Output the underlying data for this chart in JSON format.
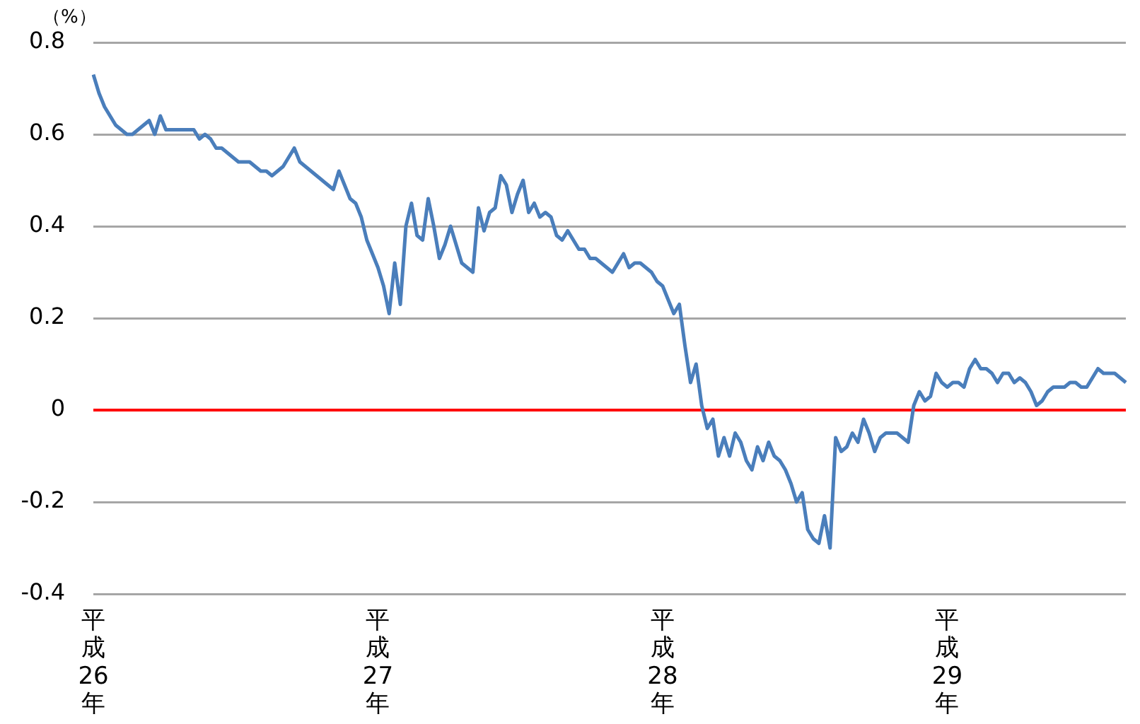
{
  "chart_data": {
    "type": "line",
    "ylabel": "（%）",
    "categories": [
      "平成26年",
      null,
      null,
      null,
      null,
      null,
      null,
      null,
      null,
      null,
      null,
      null,
      null,
      null,
      null,
      null,
      null,
      null,
      null,
      null,
      null,
      null,
      null,
      null,
      null,
      null,
      null,
      null,
      null,
      null,
      null,
      null,
      null,
      null,
      null,
      null,
      null,
      null,
      null,
      null,
      null,
      null,
      null,
      null,
      null,
      null,
      null,
      null,
      null,
      null,
      null,
      "平成27年",
      null,
      null,
      null,
      null,
      null,
      null,
      null,
      null,
      null,
      null,
      null,
      null,
      null,
      null,
      null,
      null,
      null,
      null,
      null,
      null,
      null,
      null,
      null,
      null,
      null,
      null,
      null,
      null,
      null,
      null,
      null,
      null,
      null,
      null,
      null,
      null,
      null,
      null,
      null,
      null,
      null,
      null,
      null,
      null,
      null,
      null,
      null,
      null,
      null,
      null,
      "平成28年",
      null,
      null,
      null,
      null,
      null,
      null,
      null,
      null,
      null,
      null,
      null,
      null,
      null,
      null,
      null,
      null,
      null,
      null,
      null,
      null,
      null,
      null,
      null,
      null,
      null,
      null,
      null,
      null,
      null,
      null,
      null,
      null,
      null,
      null,
      null,
      null,
      null,
      null,
      null,
      null,
      null,
      null,
      null,
      null,
      null,
      null,
      null,
      null,
      null,
      null,
      "平成29年",
      null,
      null,
      null,
      null,
      null,
      null,
      null,
      null,
      null,
      null,
      null,
      null,
      null,
      null,
      null,
      null,
      null,
      null,
      null,
      null,
      null,
      null,
      null,
      null,
      null,
      null,
      null,
      null,
      null,
      null,
      null,
      null
    ],
    "ylim": [
      -0.4,
      0.8
    ],
    "yticks": [
      -0.4,
      -0.2,
      0,
      0.2,
      0.4,
      0.6,
      0.8
    ],
    "grid": "y",
    "marker": "none",
    "line_style": "solid",
    "legend": false,
    "ref_lines": [
      {
        "axis": "y",
        "value": 0,
        "color": "#ff0000"
      }
    ],
    "series": [
      {
        "color": "#4a7ebb",
        "values": [
          0.73,
          0.69,
          0.66,
          0.64,
          0.62,
          0.61,
          0.6,
          0.6,
          0.61,
          0.62,
          0.63,
          0.6,
          0.64,
          0.61,
          0.61,
          0.61,
          0.61,
          0.61,
          0.61,
          0.59,
          0.6,
          0.59,
          0.57,
          0.57,
          0.56,
          0.55,
          0.54,
          0.54,
          0.54,
          0.53,
          0.52,
          0.52,
          0.51,
          0.52,
          0.53,
          0.55,
          0.57,
          0.54,
          0.53,
          0.52,
          0.51,
          0.5,
          0.49,
          0.48,
          0.52,
          0.49,
          0.46,
          0.45,
          0.42,
          0.37,
          0.34,
          0.31,
          0.27,
          0.21,
          0.32,
          0.23,
          0.4,
          0.45,
          0.38,
          0.37,
          0.46,
          0.4,
          0.33,
          0.36,
          0.4,
          0.36,
          0.32,
          0.31,
          0.3,
          0.44,
          0.39,
          0.43,
          0.44,
          0.51,
          0.49,
          0.43,
          0.47,
          0.5,
          0.43,
          0.45,
          0.42,
          0.43,
          0.42,
          0.38,
          0.37,
          0.39,
          0.37,
          0.35,
          0.35,
          0.33,
          0.33,
          0.32,
          0.31,
          0.3,
          0.32,
          0.34,
          0.31,
          0.32,
          0.32,
          0.31,
          0.3,
          0.28,
          0.27,
          0.24,
          0.21,
          0.23,
          0.14,
          0.06,
          0.1,
          0.01,
          -0.04,
          -0.02,
          -0.1,
          -0.06,
          -0.1,
          -0.05,
          -0.07,
          -0.11,
          -0.13,
          -0.08,
          -0.11,
          -0.07,
          -0.1,
          -0.11,
          -0.13,
          -0.16,
          -0.2,
          -0.18,
          -0.26,
          -0.28,
          -0.29,
          -0.23,
          -0.3,
          -0.06,
          -0.09,
          -0.08,
          -0.05,
          -0.07,
          -0.02,
          -0.05,
          -0.09,
          -0.06,
          -0.05,
          -0.05,
          -0.05,
          -0.06,
          -0.07,
          0.01,
          0.04,
          0.02,
          0.03,
          0.08,
          0.06,
          0.05,
          0.06,
          0.06,
          0.05,
          0.09,
          0.11,
          0.09,
          0.09,
          0.08,
          0.06,
          0.08,
          0.08,
          0.06,
          0.07,
          0.06,
          0.04,
          0.01,
          0.02,
          0.04,
          0.05,
          0.05,
          0.05,
          0.06,
          0.06,
          0.05,
          0.05,
          0.07,
          0.09,
          0.08,
          0.08,
          0.08,
          0.07,
          0.06
        ]
      }
    ]
  }
}
